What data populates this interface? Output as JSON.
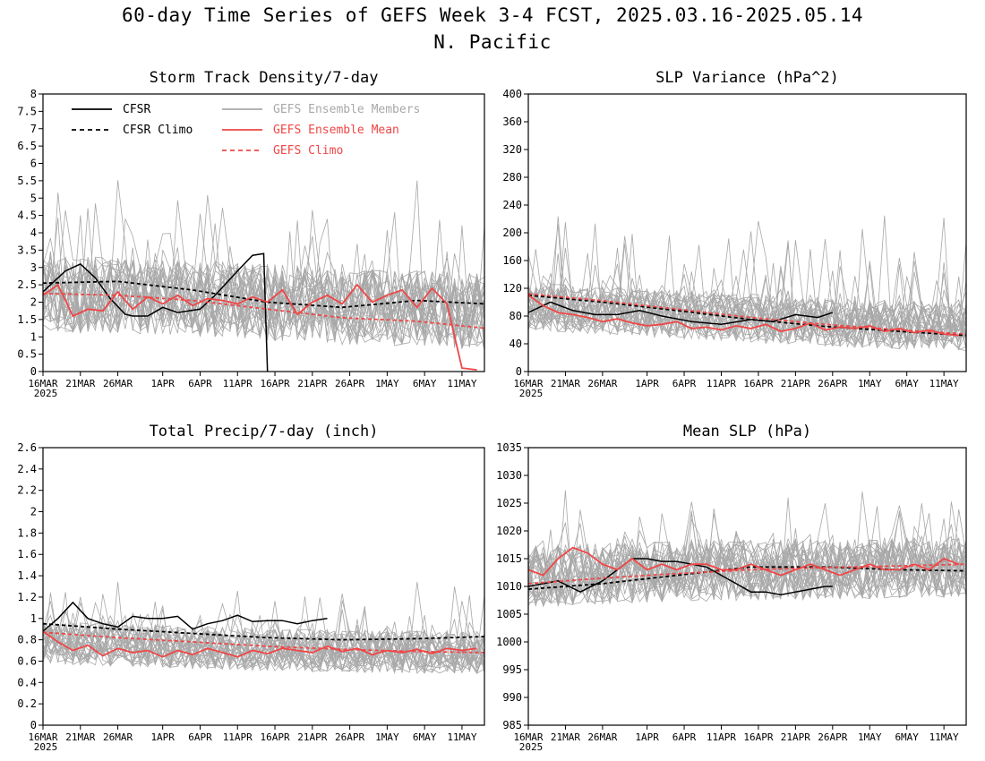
{
  "title_line1": "60-day Time Series of GEFS Week 3-4 FCST, 2025.03.16-2025.05.14",
  "title_line2": "N. Pacific",
  "x_ticks": [
    "16MAR",
    "21MAR",
    "26MAR",
    "1APR",
    "6APR",
    "11APR",
    "16APR",
    "21APR",
    "26APR",
    "1MAY",
    "6MAY",
    "11MAY"
  ],
  "x_year": "2025",
  "colors": {
    "cfsr": "#000000",
    "members": "#a8a8a8",
    "gefs_mean": "#f04646",
    "gefs_climo": "#f04646"
  },
  "legend": {
    "cfsr": "CFSR",
    "cfsr_climo": "CFSR Climo",
    "members": "GEFS Ensemble Members",
    "gefs_mean": "GEFS Ensemble Mean",
    "gefs_climo": "GEFS Climo"
  },
  "chart_data": [
    {
      "type": "line",
      "title": "Storm Track Density/7-day",
      "ylim": [
        0,
        8
      ],
      "yticks": [
        "0",
        "0.5",
        "1",
        "1.5",
        "2",
        "2.5",
        "3",
        "3.5",
        "4",
        "4.5",
        "5",
        "5.5",
        "6",
        "6.5",
        "7",
        "7.5",
        "8"
      ],
      "members_band": {
        "center": 2.2,
        "spread": 1.1,
        "max": 5.4
      },
      "series": [
        {
          "name": "CFSR",
          "x": [
            0,
            3,
            5,
            7,
            9,
            11,
            12,
            14,
            16,
            18,
            21,
            23,
            26,
            28,
            29.5,
            30
          ],
          "y": [
            2.3,
            2.9,
            3.1,
            2.7,
            2.1,
            1.65,
            1.6,
            1.6,
            1.85,
            1.7,
            1.8,
            2.2,
            2.9,
            3.35,
            3.4,
            0
          ]
        },
        {
          "name": "CFSR Climo",
          "x": [
            0,
            10,
            20,
            30,
            40,
            50,
            59
          ],
          "y": [
            2.55,
            2.6,
            2.35,
            2.0,
            1.85,
            2.05,
            1.95
          ]
        },
        {
          "name": "GEFS Ensemble Mean",
          "x": [
            0,
            2,
            4,
            6,
            8,
            10,
            12,
            14,
            16,
            18,
            20,
            22,
            24,
            26,
            28,
            30,
            32,
            34,
            36,
            38,
            40,
            42,
            44,
            46,
            48,
            50,
            52,
            54,
            56,
            58
          ],
          "y": [
            2.2,
            2.5,
            1.6,
            1.8,
            1.75,
            2.3,
            1.8,
            2.15,
            1.95,
            2.2,
            1.9,
            2.1,
            2.05,
            1.95,
            2.15,
            2.0,
            2.35,
            1.65,
            2.0,
            2.2,
            1.95,
            2.5,
            2.0,
            2.2,
            2.35,
            1.85,
            2.4,
            1.95,
            0.1,
            0.05
          ]
        },
        {
          "name": "GEFS Climo",
          "x": [
            0,
            10,
            20,
            30,
            40,
            50,
            59
          ],
          "y": [
            2.25,
            2.2,
            2.05,
            1.8,
            1.55,
            1.45,
            1.25
          ]
        }
      ]
    },
    {
      "type": "line",
      "title": "SLP Variance (hPa^2)",
      "ylim": [
        0,
        400
      ],
      "yticks": [
        "0",
        "40",
        "80",
        "120",
        "160",
        "200",
        "240",
        "280",
        "320",
        "360",
        "400"
      ],
      "members_band": {
        "center": 75,
        "spread": 35,
        "max": 230
      },
      "series": [
        {
          "name": "CFSR",
          "x": [
            0,
            3,
            6,
            9,
            12,
            15,
            18,
            22,
            26,
            30,
            33,
            36,
            39,
            41
          ],
          "y": [
            85,
            100,
            88,
            82,
            82,
            88,
            80,
            72,
            68,
            75,
            72,
            82,
            78,
            85
          ]
        },
        {
          "name": "CFSR Climo",
          "x": [
            0,
            10,
            20,
            30,
            40,
            50,
            59
          ],
          "y": [
            110,
            100,
            88,
            75,
            65,
            58,
            52
          ]
        },
        {
          "name": "GEFS Ensemble Mean",
          "x": [
            0,
            2,
            4,
            6,
            8,
            10,
            12,
            14,
            16,
            18,
            20,
            22,
            24,
            26,
            28,
            30,
            32,
            34,
            36,
            38,
            40,
            42,
            44,
            46,
            48,
            50,
            52,
            54,
            56,
            58
          ],
          "y": [
            110,
            95,
            85,
            82,
            78,
            72,
            76,
            70,
            66,
            68,
            72,
            62,
            64,
            60,
            66,
            62,
            68,
            58,
            62,
            70,
            60,
            64,
            62,
            66,
            58,
            62,
            56,
            60,
            54,
            52
          ]
        },
        {
          "name": "GEFS Climo",
          "x": [
            0,
            10,
            20,
            30,
            40,
            50,
            59
          ],
          "y": [
            112,
            102,
            90,
            78,
            68,
            60,
            54
          ]
        }
      ]
    },
    {
      "type": "line",
      "title": "Total Precip/7-day (inch)",
      "ylim": [
        0,
        2.6
      ],
      "yticks": [
        "0",
        "0.2",
        "0.4",
        "0.6",
        "0.8",
        "1",
        "1.2",
        "1.4",
        "1.6",
        "1.8",
        "2",
        "2.2",
        "2.4",
        "2.6"
      ],
      "members_band": {
        "center": 0.68,
        "spread": 0.2,
        "max": 1.3
      },
      "series": [
        {
          "name": "CFSR",
          "x": [
            0,
            2,
            4,
            6,
            8,
            10,
            12,
            14,
            16,
            18,
            20,
            22,
            24,
            26,
            28,
            30,
            32,
            34,
            36,
            38
          ],
          "y": [
            0.88,
            1.0,
            1.15,
            1.0,
            0.95,
            0.92,
            1.02,
            1.0,
            1.0,
            1.02,
            0.9,
            0.95,
            0.98,
            1.03,
            0.97,
            0.98,
            0.98,
            0.95,
            0.98,
            1.0
          ]
        },
        {
          "name": "CFSR Climo",
          "x": [
            0,
            10,
            20,
            30,
            40,
            50,
            59
          ],
          "y": [
            0.95,
            0.9,
            0.86,
            0.82,
            0.8,
            0.81,
            0.83
          ]
        },
        {
          "name": "GEFS Ensemble Mean",
          "x": [
            0,
            2,
            4,
            6,
            8,
            10,
            12,
            14,
            16,
            18,
            20,
            22,
            24,
            26,
            28,
            30,
            32,
            34,
            36,
            38,
            40,
            42,
            44,
            46,
            48,
            50,
            52,
            54,
            56,
            58
          ],
          "y": [
            0.88,
            0.78,
            0.7,
            0.75,
            0.65,
            0.72,
            0.68,
            0.7,
            0.64,
            0.7,
            0.66,
            0.72,
            0.68,
            0.64,
            0.7,
            0.67,
            0.72,
            0.7,
            0.68,
            0.74,
            0.69,
            0.72,
            0.66,
            0.7,
            0.68,
            0.71,
            0.67,
            0.72,
            0.7,
            0.72
          ]
        },
        {
          "name": "GEFS Climo",
          "x": [
            0,
            10,
            20,
            30,
            40,
            50,
            59
          ],
          "y": [
            0.87,
            0.82,
            0.78,
            0.74,
            0.71,
            0.69,
            0.68
          ]
        }
      ]
    },
    {
      "type": "line",
      "title": "Mean SLP (hPa)",
      "ylim": [
        985,
        1035
      ],
      "yticks": [
        "985",
        "990",
        "995",
        "1000",
        "1005",
        "1010",
        "1015",
        "1020",
        "1025",
        "1030",
        "1035"
      ],
      "members_band": {
        "center": 1013,
        "spread": 5.5,
        "max": 1025
      },
      "series": [
        {
          "name": "CFSR",
          "x": [
            0,
            4,
            7,
            10,
            12,
            14,
            16,
            18,
            20,
            22,
            24,
            26,
            28,
            30,
            32,
            34,
            36,
            38,
            40,
            41
          ],
          "y": [
            1010,
            1011,
            1009,
            1011,
            1013,
            1015,
            1015,
            1014.5,
            1014.5,
            1014,
            1013.5,
            1012,
            1010.5,
            1009,
            1009,
            1008.5,
            1009,
            1009.5,
            1010,
            1010
          ]
        },
        {
          "name": "CFSR Climo",
          "x": [
            0,
            10,
            20,
            30,
            40,
            50,
            59
          ],
          "y": [
            1009.5,
            1010.5,
            1012,
            1013.5,
            1013.5,
            1013,
            1012.8
          ]
        },
        {
          "name": "GEFS Ensemble Mean",
          "x": [
            0,
            2,
            4,
            6,
            8,
            10,
            12,
            14,
            16,
            18,
            20,
            22,
            24,
            26,
            28,
            30,
            32,
            34,
            36,
            38,
            40,
            42,
            44,
            46,
            48,
            50,
            52,
            54,
            56,
            58
          ],
          "y": [
            1013,
            1012,
            1015,
            1017,
            1016,
            1014,
            1013,
            1015,
            1013,
            1014,
            1013,
            1014,
            1014,
            1013,
            1013,
            1014,
            1013,
            1012,
            1013,
            1014,
            1013,
            1012,
            1013,
            1014,
            1013,
            1013,
            1014,
            1013,
            1015,
            1014
          ]
        },
        {
          "name": "GEFS Climo",
          "x": [
            0,
            10,
            20,
            30,
            40,
            50,
            59
          ],
          "y": [
            1010.5,
            1011.5,
            1012.3,
            1013,
            1013.4,
            1013.7,
            1014
          ]
        }
      ]
    }
  ]
}
